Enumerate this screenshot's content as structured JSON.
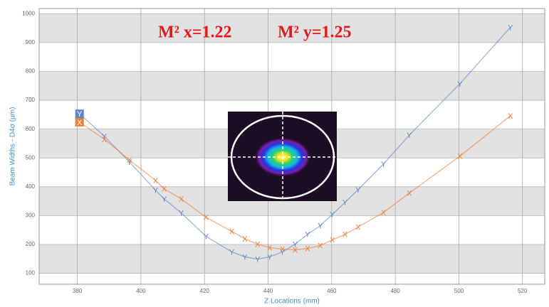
{
  "chart_data": {
    "type": "line",
    "annotations": [
      "M² x=1.22",
      "M² y=1.25"
    ],
    "x_label": "Z Locations (mm)",
    "y_label": "Beam Widths - D4σ (µm)",
    "xlim": [
      368,
      527
    ],
    "ylim": [
      62,
      1018
    ],
    "xticks": [
      380,
      400,
      420,
      440,
      460,
      480,
      500,
      520
    ],
    "yticks": [
      100,
      200,
      300,
      400,
      500,
      600,
      700,
      800,
      900,
      1000
    ],
    "grid": true,
    "series": [
      {
        "name": "Y",
        "color": "#5b87c9",
        "x": [
          380.7,
          388.5,
          396.4,
          404.6,
          407.3,
          412.7,
          420.5,
          428.6,
          432.7,
          436.7,
          440.5,
          444.5,
          448.5,
          452.4,
          456.4,
          460.2,
          464.2,
          468.3,
          476.3,
          484.4,
          500.3,
          516.2
        ],
        "values": [
          653,
          575,
          486,
          388,
          358,
          309,
          228,
          174,
          157,
          149,
          157,
          174,
          201,
          235,
          265,
          304,
          346,
          390,
          479,
          579,
          757,
          953
        ]
      },
      {
        "name": "X",
        "color": "#ed7d31",
        "x": [
          380.7,
          388.5,
          396.4,
          404.6,
          407.3,
          412.7,
          420.5,
          428.6,
          432.7,
          436.7,
          440.5,
          444.5,
          448.5,
          452.4,
          456.4,
          460.2,
          464.2,
          468.3,
          476.3,
          484.4,
          500.3,
          516.2
        ],
        "values": [
          624,
          565,
          493,
          422,
          393,
          358,
          294,
          245,
          220,
          201,
          189,
          184,
          181,
          186,
          196,
          216,
          235,
          260,
          311,
          378,
          506,
          646
        ]
      }
    ]
  }
}
